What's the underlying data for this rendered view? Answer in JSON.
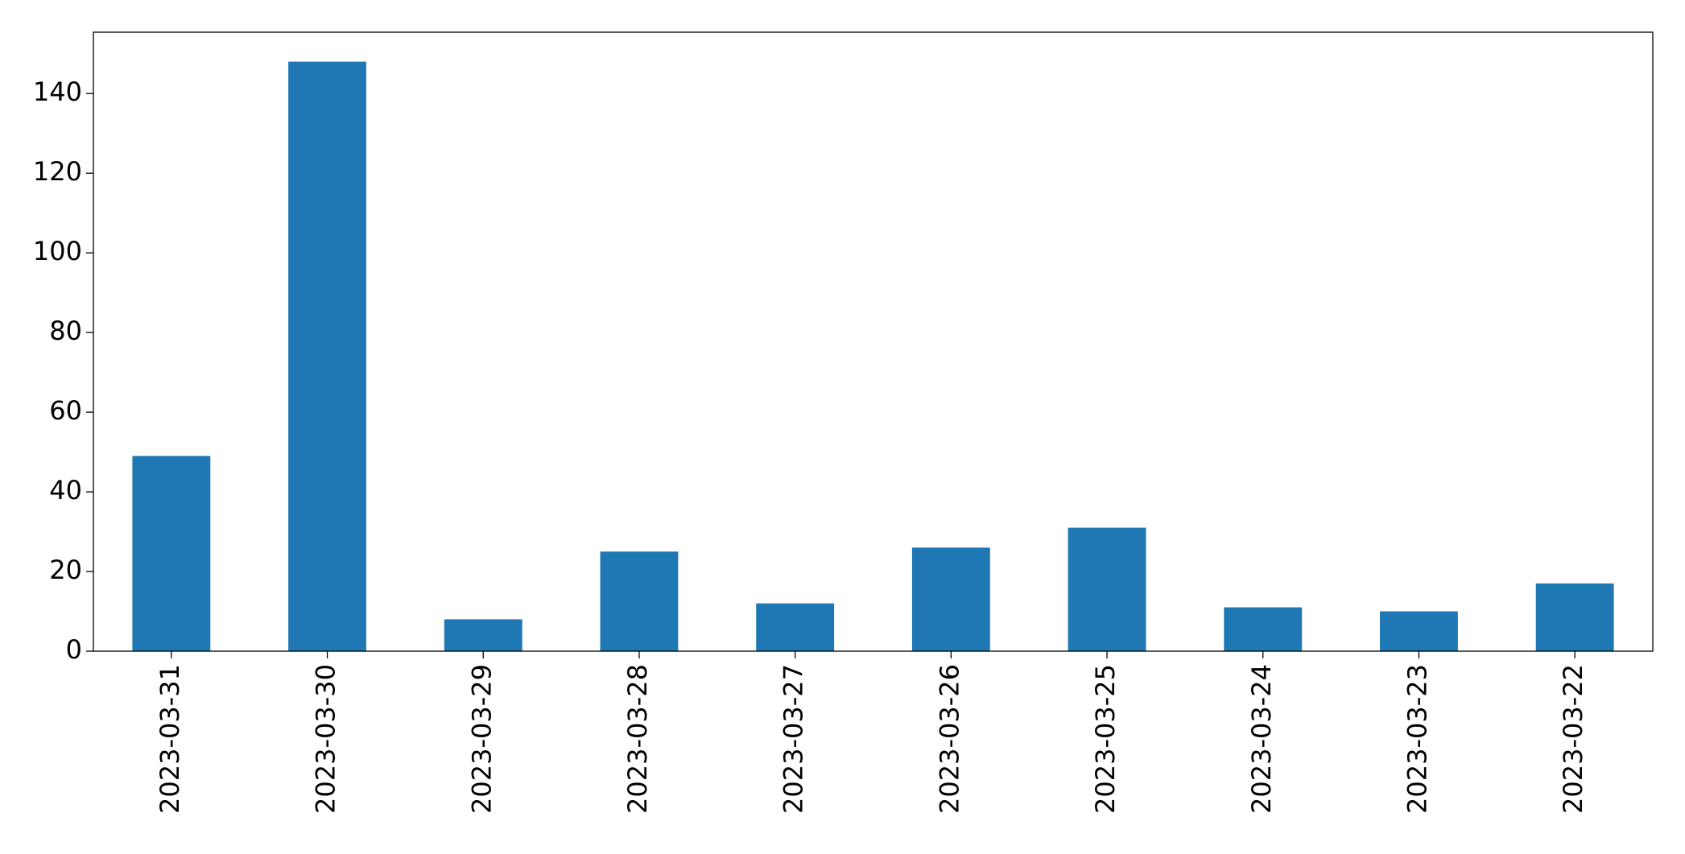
{
  "chart_data": {
    "type": "bar",
    "categories": [
      "2023-03-31",
      "2023-03-30",
      "2023-03-29",
      "2023-03-28",
      "2023-03-27",
      "2023-03-26",
      "2023-03-25",
      "2023-03-24",
      "2023-03-23",
      "2023-03-22"
    ],
    "values": [
      49,
      148,
      8,
      25,
      12,
      26,
      31,
      11,
      10,
      17
    ],
    "color": "#1f77b4",
    "ylim": [
      0,
      155.4
    ],
    "yticks": [
      0,
      20,
      40,
      60,
      80,
      100,
      120,
      140
    ],
    "grid": false
  }
}
